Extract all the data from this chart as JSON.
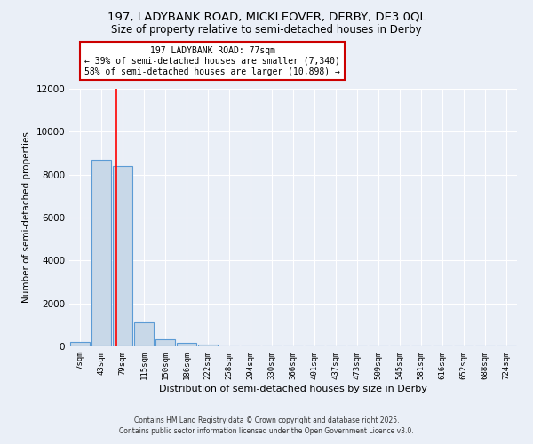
{
  "title": "197, LADYBANK ROAD, MICKLEOVER, DERBY, DE3 0QL",
  "subtitle": "Size of property relative to semi-detached houses in Derby",
  "xlabel": "Distribution of semi-detached houses by size in Derby",
  "ylabel": "Number of semi-detached properties",
  "bar_color": "#c8d8e8",
  "bar_edge_color": "#5b9bd5",
  "categories": [
    "7sqm",
    "43sqm",
    "79sqm",
    "115sqm",
    "150sqm",
    "186sqm",
    "222sqm",
    "258sqm",
    "294sqm",
    "330sqm",
    "366sqm",
    "401sqm",
    "437sqm",
    "473sqm",
    "509sqm",
    "545sqm",
    "581sqm",
    "616sqm",
    "652sqm",
    "688sqm",
    "724sqm"
  ],
  "values": [
    200,
    8700,
    8400,
    1100,
    350,
    150,
    100,
    0,
    0,
    0,
    0,
    0,
    0,
    0,
    0,
    0,
    0,
    0,
    0,
    0,
    0
  ],
  "ylim": [
    0,
    12000
  ],
  "yticks": [
    0,
    2000,
    4000,
    6000,
    8000,
    10000,
    12000
  ],
  "red_line_x": 1.72,
  "annotation_title": "197 LADYBANK ROAD: 77sqm",
  "annotation_line2": "← 39% of semi-detached houses are smaller (7,340)",
  "annotation_line3": "58% of semi-detached houses are larger (10,898) →",
  "annotation_box_color": "#ffffff",
  "annotation_border_color": "#cc0000",
  "footer1": "Contains HM Land Registry data © Crown copyright and database right 2025.",
  "footer2": "Contains public sector information licensed under the Open Government Licence v3.0.",
  "bg_color": "#eaeff7",
  "plot_bg_color": "#eaeff7"
}
